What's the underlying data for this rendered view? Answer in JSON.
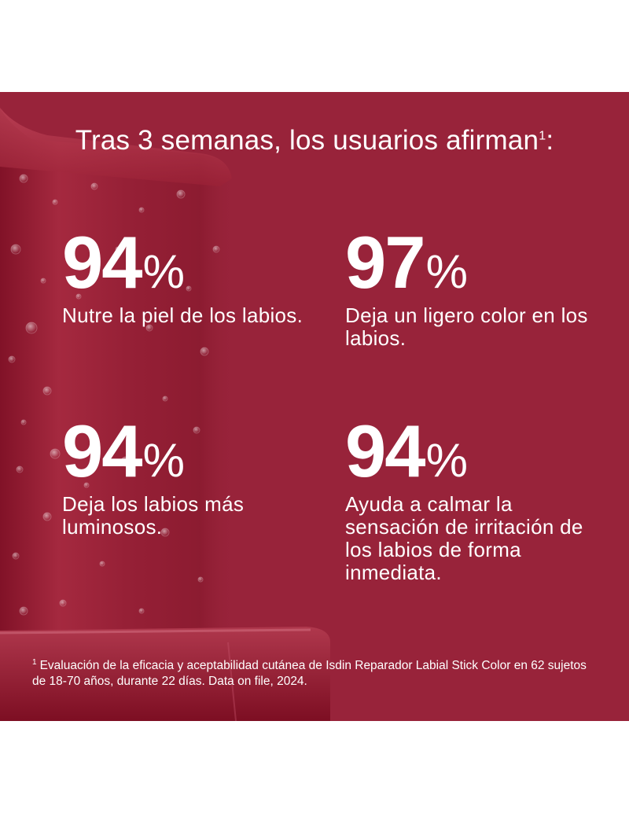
{
  "colors": {
    "background": "#ffffff",
    "panel": "#98233a",
    "text": "#ffffff"
  },
  "headline": {
    "text": "Tras 3 semanas, los usuarios afirman",
    "footnote_marker": "1",
    "suffix": ":"
  },
  "stats": [
    {
      "value": "94",
      "unit": "%",
      "description": "Nutre la piel de los labios."
    },
    {
      "value": "97",
      "unit": "%",
      "description": "Deja un ligero color en los labios."
    },
    {
      "value": "94",
      "unit": "%",
      "description": "Deja los labios más luminosos."
    },
    {
      "value": "94",
      "unit": "%",
      "description": "Ayuda a calmar la sensación de irritación de los labios de forma inmediata."
    }
  ],
  "footnote": {
    "marker": "1",
    "text": "Evaluación de la eficacia y aceptabilidad cutánea de Isdin Reparador Labial Stick Color en 62 sujetos de 18-70 años, durante 22 días. Data on file, 2024."
  },
  "background_image": {
    "icon": "lipstick-with-water-droplets"
  }
}
